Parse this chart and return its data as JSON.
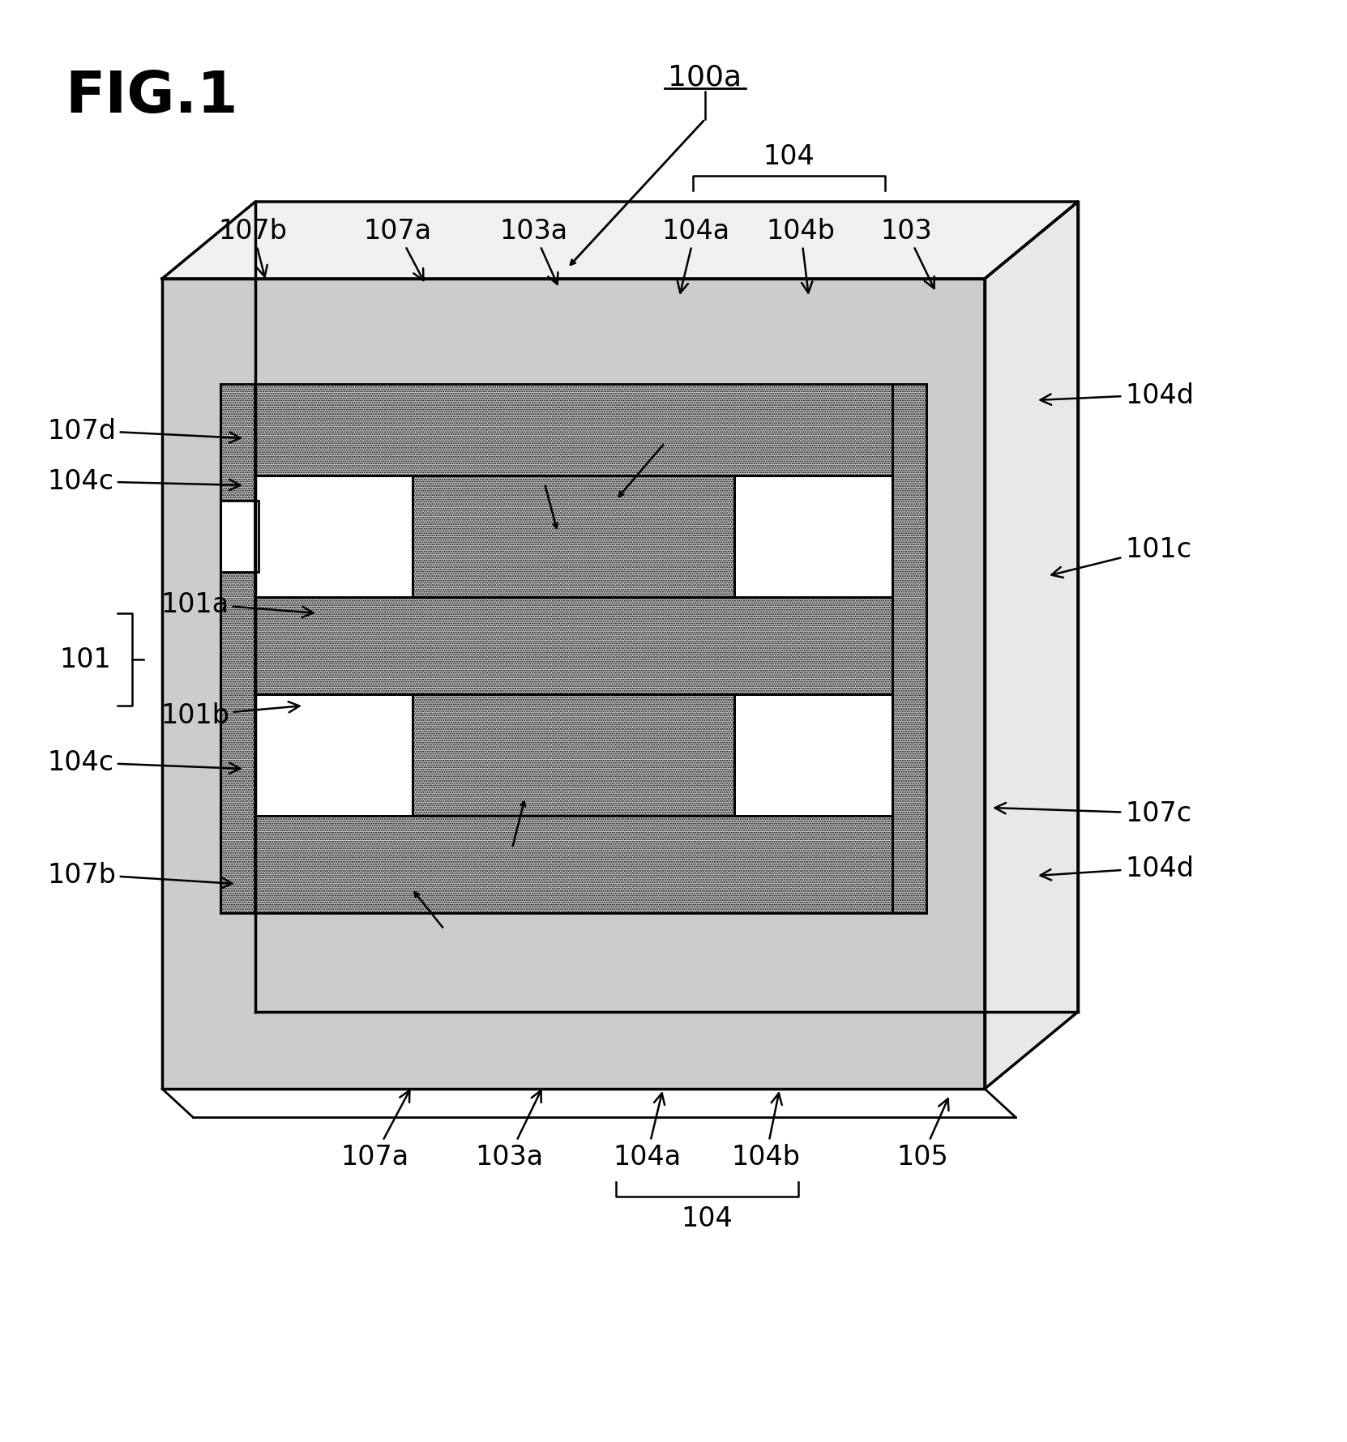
{
  "fig_width": 16.62,
  "fig_height": 17.81,
  "bg_color": "#ffffff",
  "labels": {
    "fig_title": "FIG.1",
    "l100a": "100a",
    "l104_top": "104",
    "l104a_top": "104a",
    "l104b_top": "104b",
    "l103_top": "103",
    "l107b_top": "107b",
    "l107a_top": "107a",
    "l103a_top": "103a",
    "l104d_top": "104d",
    "l101c": "101c",
    "l107d": "107d",
    "l104c_top": "104c",
    "l101": "101",
    "l101a": "101a",
    "l101b": "101b",
    "l104c_bot": "104c",
    "l107c": "107c",
    "l104d_bot": "104d",
    "l107b_bot": "107b",
    "l107a_bot": "107a",
    "l103a_bot": "103a",
    "l104a_bot": "104a",
    "l104b_bot": "104b",
    "l104_bot": "104",
    "l105": "105"
  },
  "font_size": 24,
  "title_font_size": 52
}
